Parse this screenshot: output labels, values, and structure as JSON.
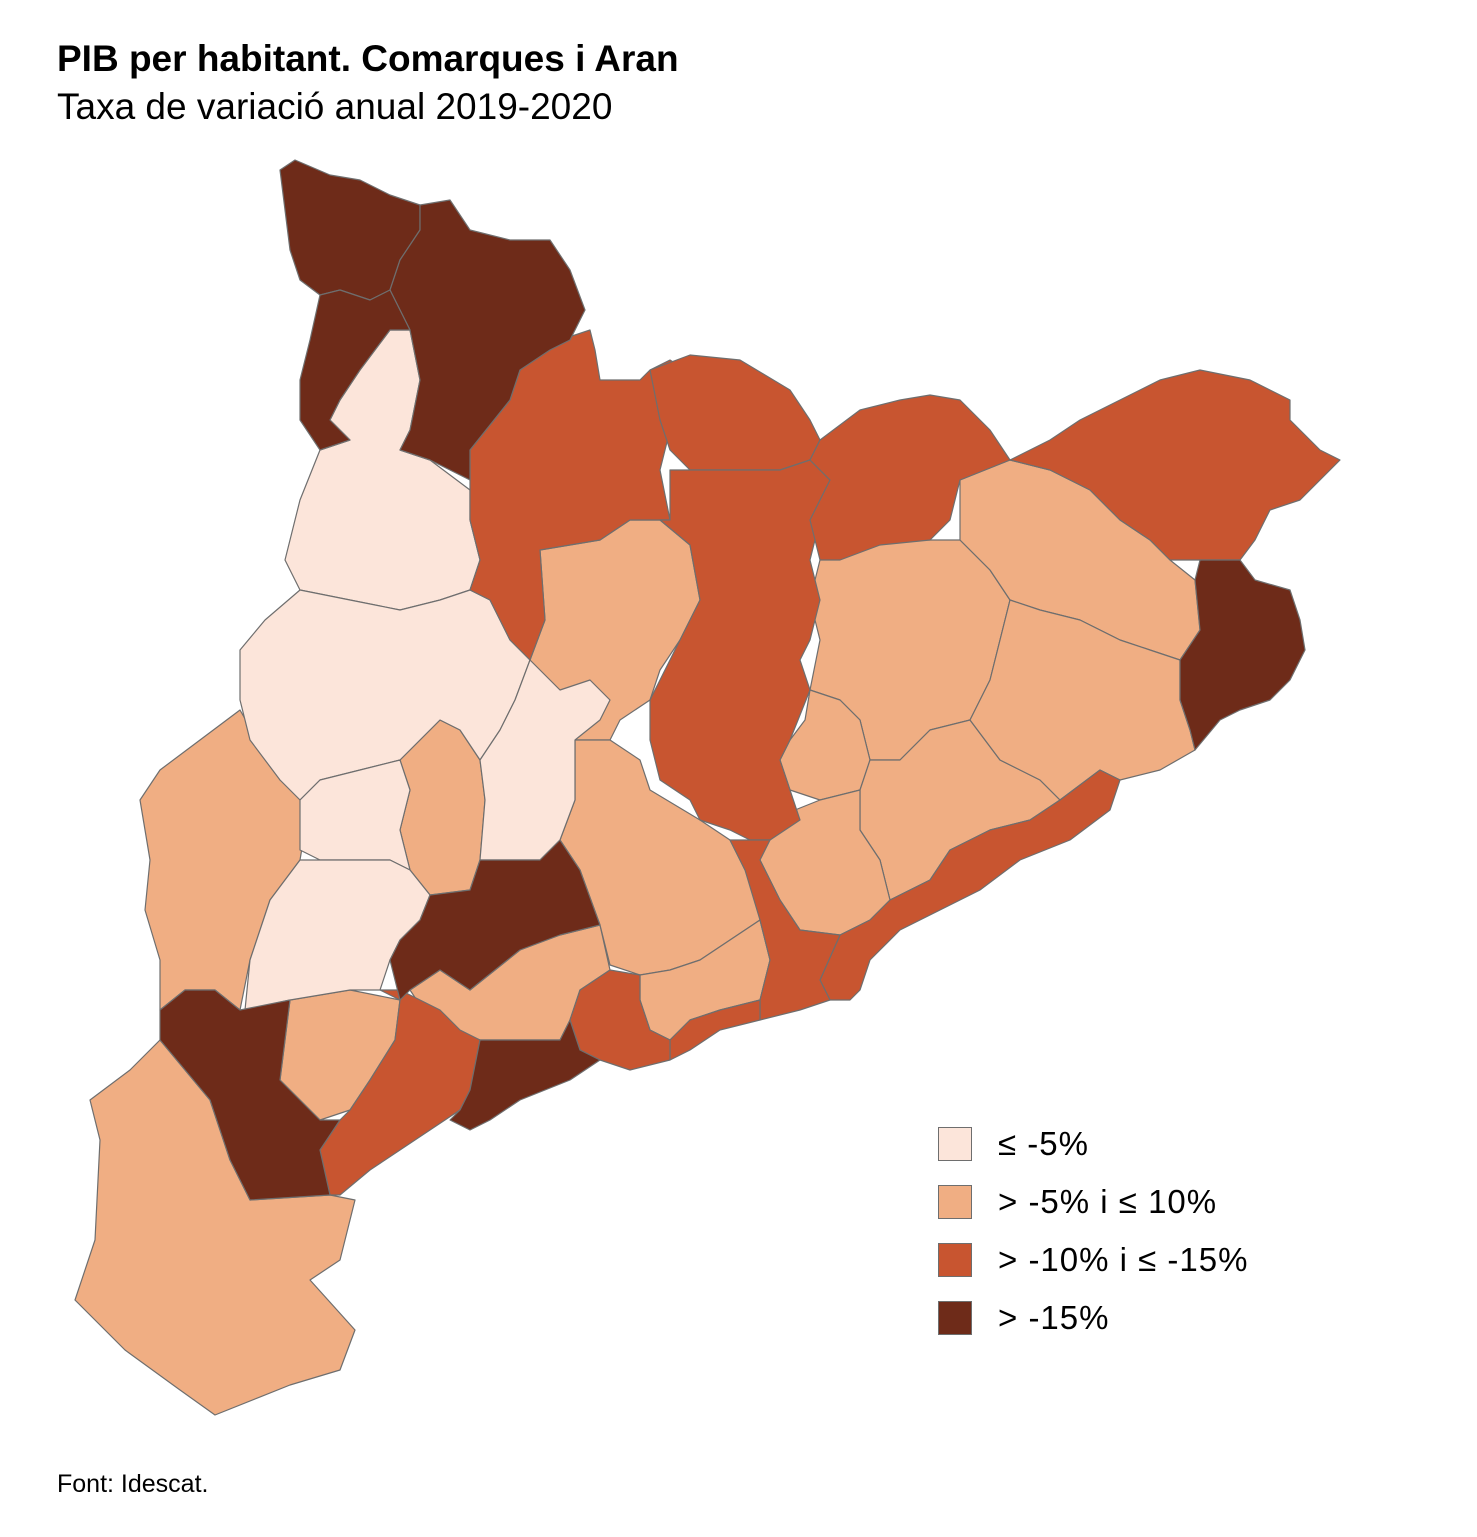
{
  "title": "PIB per habitant. Comarques i Aran",
  "subtitle": "Taxa de variació anual 2019-2020",
  "source": "Font: Idescat.",
  "legend": [
    {
      "label": "≤ -5%",
      "color": "#fce5da"
    },
    {
      "label": "> -5% i ≤ 10%",
      "color": "#f0ae83"
    },
    {
      "label": "> -10% i ≤ -15%",
      "color": "#c85530"
    },
    {
      "label": "> -15%",
      "color": "#6e2b19"
    }
  ]
}
